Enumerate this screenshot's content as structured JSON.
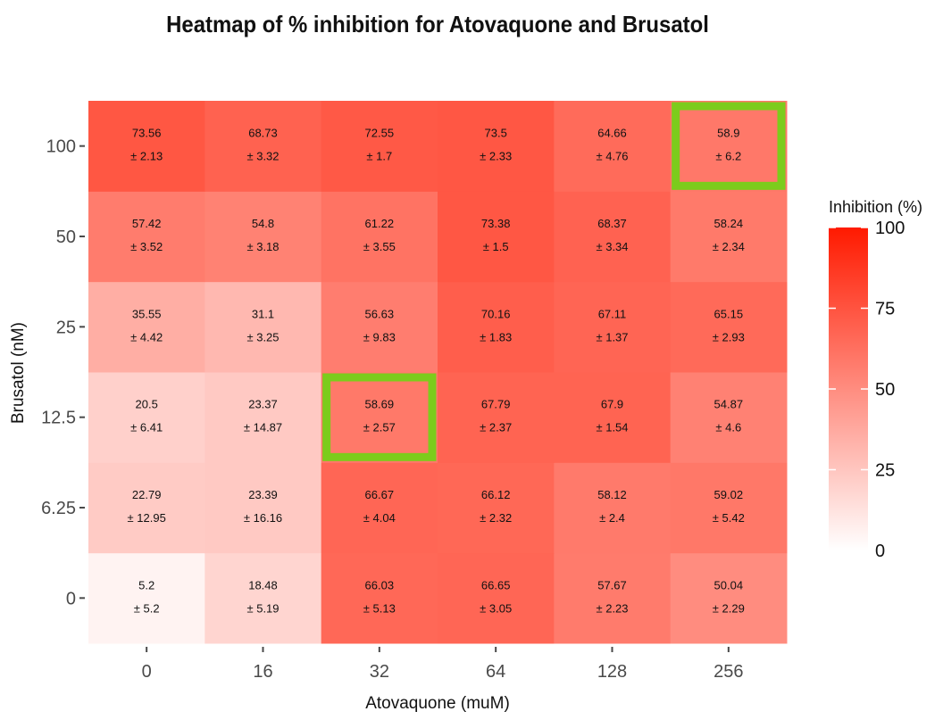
{
  "chart_data": {
    "type": "heatmap",
    "title": "Heatmap of % inhibition for Atovaquone and Brusatol",
    "xlabel": "Atovaquone (muM)",
    "ylabel": "Brusatol (nM)",
    "x_categories": [
      "0",
      "16",
      "32",
      "64",
      "128",
      "256"
    ],
    "y_categories": [
      "0",
      "6.25",
      "12.5",
      "25",
      "50",
      "100"
    ],
    "values": [
      [
        5.2,
        18.48,
        66.03,
        66.65,
        57.67,
        50.04
      ],
      [
        22.79,
        23.39,
        66.67,
        66.12,
        58.12,
        59.02
      ],
      [
        20.5,
        23.37,
        58.69,
        67.79,
        67.9,
        54.87
      ],
      [
        35.55,
        31.1,
        56.63,
        70.16,
        67.11,
        65.15
      ],
      [
        57.42,
        54.8,
        61.22,
        73.38,
        68.37,
        58.24
      ],
      [
        73.56,
        68.73,
        72.55,
        73.5,
        64.66,
        58.9
      ]
    ],
    "errors": [
      [
        "± 5.2",
        "± 5.19",
        "± 5.13",
        "± 3.05",
        "± 2.23",
        "± 2.29"
      ],
      [
        "± 12.95",
        "± 16.16",
        "± 4.04",
        "± 2.32",
        "± 2.4",
        "± 5.42"
      ],
      [
        "± 6.41",
        "± 14.87",
        "± 2.57",
        "± 2.37",
        "± 1.54",
        "± 4.6"
      ],
      [
        "± 4.42",
        "± 3.25",
        "± 9.83",
        "± 1.83",
        "± 1.37",
        "± 2.93"
      ],
      [
        "± 3.52",
        "± 3.18",
        "± 3.55",
        "± 1.5",
        "± 3.34",
        "± 2.34"
      ],
      [
        "± 2.13",
        "± 3.32",
        "± 1.7",
        "± 2.33",
        "± 4.76",
        "± 6.2"
      ]
    ],
    "highlighted_cells": [
      {
        "x": "32",
        "y": "12.5"
      },
      {
        "x": "256",
        "y": "100"
      }
    ],
    "highlight_color": "#7ccc1c",
    "color_scale": {
      "low": "#ffffff",
      "high": "#ff1a00",
      "limits": [
        0,
        100
      ]
    },
    "legend": {
      "title": "Inhibition (%)",
      "breaks": [
        "100",
        "75",
        "50",
        "25",
        "0"
      ],
      "placement": "right"
    }
  }
}
